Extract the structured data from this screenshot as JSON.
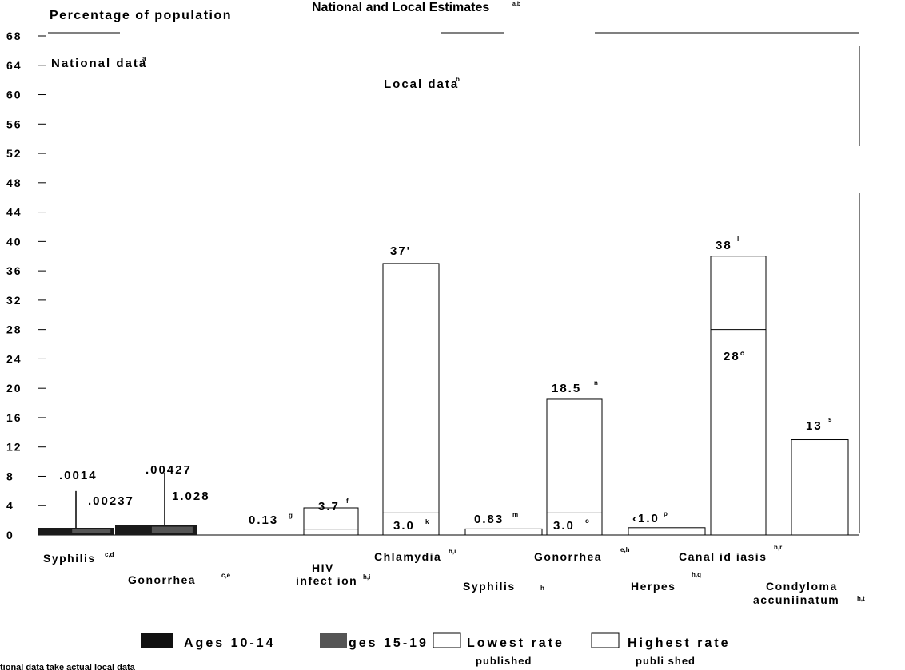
{
  "title": "National and Local Estimates",
  "title_sup": "a,b",
  "ylabel": "Percentage of population",
  "section_national": "National data",
  "section_national_sup": "a",
  "section_local": "Local data",
  "section_local_sup": "b",
  "yticks": [
    "68",
    "64",
    "60",
    "56",
    "52",
    "48",
    "44",
    "40",
    "36",
    "32",
    "28",
    "24",
    "20",
    "16",
    "12",
    "8",
    "4",
    "0"
  ],
  "categories": [
    {
      "label": "Syphilis",
      "sup": "c,d"
    },
    {
      "label": "Gonorrhea",
      "sup": "c,e"
    },
    {
      "label": "HIV",
      "label2": "infect ion",
      "sup": "h,i"
    },
    {
      "label": "Chlamydia",
      "sup": "h,i"
    },
    {
      "label": "Syphilis",
      "sup": "h"
    },
    {
      "label": "Gonorrhea",
      "sup": "e,h"
    },
    {
      "label": "Herpes",
      "sup": "h,q"
    },
    {
      "label": "Canal id iasis",
      "sup": "h,r"
    },
    {
      "label": "Condyloma",
      "label2": "accuniinatum",
      "sup": "h,t"
    }
  ],
  "value_labels": [
    {
      "text": ".0014",
      "sup": ""
    },
    {
      "text": ".00237",
      "sup": ""
    },
    {
      "text": ".00427",
      "sup": ""
    },
    {
      "text": "1.028",
      "sup": ""
    },
    {
      "text": "0.13",
      "sup": "g"
    },
    {
      "text": "3.7",
      "sup": "f"
    },
    {
      "text": "37'",
      "sup": ""
    },
    {
      "text": "3.0",
      "sup": "k"
    },
    {
      "text": "0.83",
      "sup": "m"
    },
    {
      "text": "18.5",
      "sup": "n"
    },
    {
      "text": "3.0",
      "sup": "o"
    },
    {
      "text": "‹1.0",
      "sup": "p"
    },
    {
      "text": "38",
      "sup": "l"
    },
    {
      "text": "28°",
      "sup": ""
    },
    {
      "text": "13",
      "sup": "s"
    }
  ],
  "legend": [
    {
      "label": "Ages 10-14",
      "sub": "",
      "fill": "#111111"
    },
    {
      "label": "ges 15-19",
      "sub": "",
      "fill": "#555555"
    },
    {
      "label": "Lowest rate",
      "sub": "published",
      "fill": "#ffffff"
    },
    {
      "label": "Highest rate",
      "sub": "publi shed",
      "fill": "#ffffff"
    }
  ],
  "footnote": "tional data take actual local data",
  "chart_data": {
    "type": "bar",
    "ylim": [
      0,
      68
    ],
    "ylabel": "Percentage of population",
    "title": "National and Local Estimates",
    "national": {
      "categories": [
        "Syphilis",
        "Gonorrhea"
      ],
      "series": [
        {
          "name": "Ages 10-14",
          "values": [
            0.0014,
            0.00427
          ]
        },
        {
          "name": "Ages 15-19",
          "values": [
            0.00237,
            1.028
          ]
        }
      ]
    },
    "local": {
      "categories": [
        "HIV infect ion",
        "Chlamydia",
        "Syphilis",
        "Gonorrhea",
        "Herpes",
        "Canal id iasis",
        "Condyloma accuniinatum"
      ],
      "series": [
        {
          "name": "Lowest rate published",
          "values": [
            0.13,
            3.0,
            null,
            3.0,
            null,
            28,
            null
          ]
        },
        {
          "name": "Highest rate published",
          "values": [
            3.7,
            37,
            0.83,
            18.5,
            1.0,
            38,
            13
          ]
        }
      ]
    }
  }
}
